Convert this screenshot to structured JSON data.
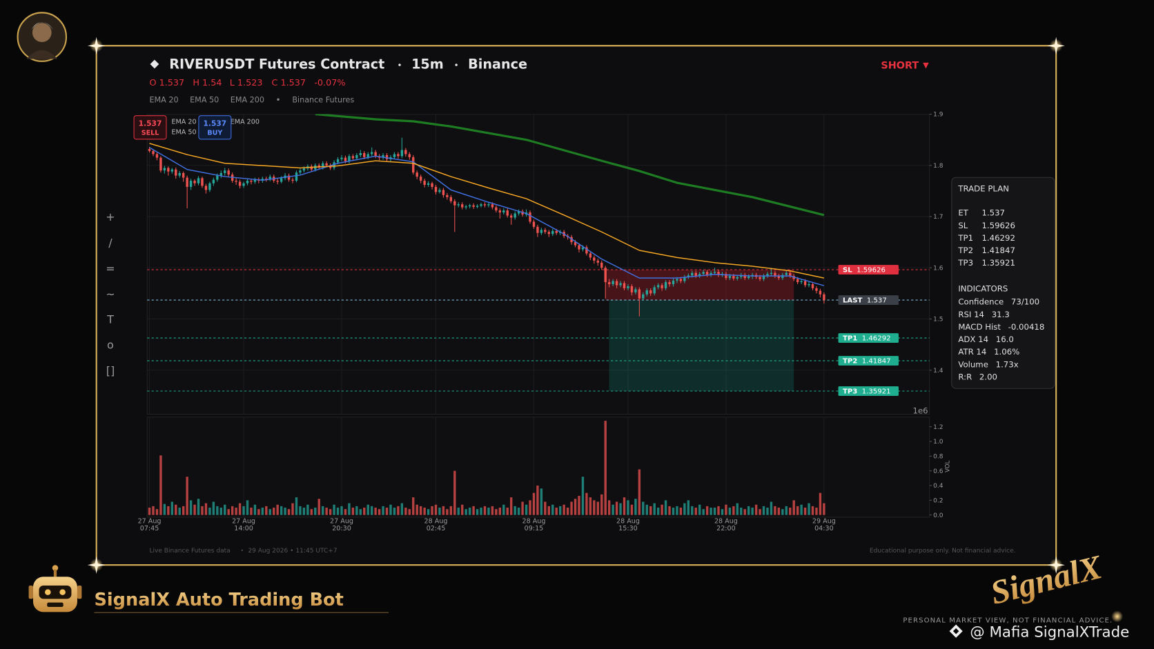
{
  "header": {
    "title": "RIVERUSDT Futures Contract",
    "interval": "15m",
    "exchange": "Binance",
    "side": "SHORT",
    "ohlc": [
      "O 1.537",
      "H 1.54",
      "L 1.523",
      "C 1.537",
      "-0.07%"
    ],
    "indicators": [
      "EMA 20",
      "EMA 50",
      "EMA 200",
      "Binance Futures"
    ]
  },
  "toolbar": [
    "+",
    "/",
    "=",
    "~",
    "T",
    "o",
    "[]"
  ],
  "orders": [
    {
      "price": "1.537",
      "side": "SELL"
    },
    {
      "price": "1.537",
      "side": "BUY"
    }
  ],
  "overlay_legend": [
    "EMA 20",
    "EMA 50",
    "EMA 200"
  ],
  "chart_data": {
    "type": "candlestick",
    "up_color": "#26a69a",
    "down_color": "#ef5350",
    "grid": true,
    "xlim": [
      -0.6,
      207
    ],
    "xticks": [
      {
        "value": 0,
        "label": [
          "27 Aug",
          "07:45"
        ]
      },
      {
        "value": 25,
        "label": [
          "27 Aug",
          "14:00"
        ]
      },
      {
        "value": 51,
        "label": [
          "27 Aug",
          "20:30"
        ]
      },
      {
        "value": 76,
        "label": [
          "28 Aug",
          "02:45"
        ]
      },
      {
        "value": 102,
        "label": [
          "28 Aug",
          "09:15"
        ]
      },
      {
        "value": 127,
        "label": [
          "28 Aug",
          "15:30"
        ]
      },
      {
        "value": 153,
        "label": [
          "28 Aug",
          "22:00"
        ]
      },
      {
        "value": 179,
        "label": [
          "29 Aug",
          "04:30"
        ]
      }
    ],
    "ylim": [
      1.314,
      1.9
    ],
    "yticks": [
      1.4,
      1.5,
      1.6,
      1.7,
      1.8,
      1.9
    ],
    "y_offset_label": "1e6",
    "open": [
      1.832,
      1.828,
      1.822,
      1.815,
      1.79,
      1.795,
      1.788,
      1.792,
      1.78,
      1.785,
      1.776,
      1.758,
      1.77,
      1.765,
      1.775,
      1.76,
      1.752,
      1.765,
      1.772,
      1.78,
      1.785,
      1.79,
      1.782,
      1.77,
      1.768,
      1.76,
      1.765,
      1.77,
      1.768,
      1.772,
      1.77,
      1.774,
      1.772,
      1.778,
      1.77,
      1.768,
      1.775,
      1.78,
      1.772,
      1.77,
      1.786,
      1.79,
      1.794,
      1.798,
      1.792,
      1.8,
      1.796,
      1.804,
      1.8,
      1.795,
      1.806,
      1.812,
      1.815,
      1.808,
      1.818,
      1.814,
      1.82,
      1.824,
      1.816,
      1.822,
      1.826,
      1.818,
      1.815,
      1.82,
      1.812,
      1.816,
      1.822,
      1.818,
      1.83,
      1.822,
      1.816,
      1.786,
      1.778,
      1.77,
      1.762,
      1.765,
      1.758,
      1.748,
      1.752,
      1.742,
      1.738,
      1.73,
      1.722,
      1.724,
      1.718,
      1.72,
      1.722,
      1.719,
      1.721,
      1.724,
      1.722,
      1.724,
      1.718,
      1.712,
      1.708,
      1.712,
      1.702,
      1.698,
      1.706,
      1.71,
      1.704,
      1.708,
      1.69,
      1.68,
      1.668,
      1.674,
      1.67,
      1.666,
      1.672,
      1.668,
      1.67,
      1.662,
      1.66,
      1.65,
      1.644,
      1.636,
      1.64,
      1.628,
      1.62,
      1.614,
      1.61,
      1.6,
      1.572,
      1.568,
      1.574,
      1.566,
      1.57,
      1.56,
      1.564,
      1.552,
      1.558,
      1.54,
      1.548,
      1.556,
      1.55,
      1.562,
      1.566,
      1.56,
      1.572,
      1.568,
      1.575,
      1.578,
      1.574,
      1.582,
      1.585,
      1.59,
      1.584,
      1.588,
      1.592,
      1.586,
      1.59,
      1.592,
      1.586,
      1.588,
      1.58,
      1.584,
      1.579,
      1.582,
      1.586,
      1.58,
      1.583,
      1.586,
      1.582,
      1.578,
      1.584,
      1.588,
      1.59,
      1.584,
      1.58,
      1.586,
      1.59,
      1.584,
      1.578,
      1.572,
      1.574,
      1.566,
      1.568,
      1.56,
      1.555,
      1.548
    ],
    "high": [
      1.836,
      1.831,
      1.825,
      1.818,
      1.799,
      1.798,
      1.795,
      1.796,
      1.789,
      1.788,
      1.78,
      1.774,
      1.773,
      1.779,
      1.778,
      1.764,
      1.768,
      1.776,
      1.784,
      1.79,
      1.795,
      1.794,
      1.786,
      1.775,
      1.772,
      1.768,
      1.774,
      1.774,
      1.776,
      1.776,
      1.778,
      1.778,
      1.782,
      1.782,
      1.774,
      1.779,
      1.785,
      1.784,
      1.776,
      1.79,
      1.794,
      1.798,
      1.802,
      1.802,
      1.804,
      1.804,
      1.808,
      1.808,
      1.804,
      1.81,
      1.816,
      1.82,
      1.819,
      1.822,
      1.822,
      1.824,
      1.83,
      1.828,
      1.826,
      1.835,
      1.83,
      1.822,
      1.824,
      1.824,
      1.82,
      1.826,
      1.826,
      1.854,
      1.834,
      1.826,
      1.82,
      1.79,
      1.782,
      1.774,
      1.769,
      1.768,
      1.762,
      1.756,
      1.756,
      1.746,
      1.742,
      1.734,
      1.728,
      1.728,
      1.723,
      1.725,
      1.726,
      1.724,
      1.727,
      1.728,
      1.728,
      1.728,
      1.722,
      1.716,
      1.716,
      1.716,
      1.706,
      1.71,
      1.714,
      1.714,
      1.714,
      1.712,
      1.694,
      1.684,
      1.678,
      1.678,
      1.674,
      1.676,
      1.676,
      1.674,
      1.674,
      1.666,
      1.664,
      1.654,
      1.648,
      1.644,
      1.644,
      1.632,
      1.624,
      1.618,
      1.614,
      1.604,
      1.578,
      1.578,
      1.578,
      1.574,
      1.574,
      1.568,
      1.568,
      1.562,
      1.562,
      1.552,
      1.56,
      1.56,
      1.566,
      1.57,
      1.57,
      1.576,
      1.576,
      1.58,
      1.582,
      1.582,
      1.586,
      1.589,
      1.594,
      1.594,
      1.592,
      1.596,
      1.596,
      1.594,
      1.6,
      1.596,
      1.592,
      1.592,
      1.588,
      1.588,
      1.586,
      1.59,
      1.59,
      1.587,
      1.59,
      1.59,
      1.586,
      1.588,
      1.592,
      1.598,
      1.594,
      1.588,
      1.59,
      1.594,
      1.596,
      1.588,
      1.582,
      1.578,
      1.578,
      1.572,
      1.572,
      1.564,
      1.559,
      1.552
    ],
    "low": [
      1.825,
      1.818,
      1.81,
      1.786,
      1.784,
      1.78,
      1.784,
      1.774,
      1.776,
      1.768,
      1.716,
      1.752,
      1.76,
      1.761,
      1.756,
      1.745,
      1.748,
      1.76,
      1.768,
      1.775,
      1.78,
      1.778,
      1.766,
      1.762,
      1.755,
      1.756,
      1.761,
      1.763,
      1.764,
      1.765,
      1.766,
      1.768,
      1.769,
      1.766,
      1.763,
      1.765,
      1.771,
      1.768,
      1.765,
      1.767,
      1.782,
      1.786,
      1.79,
      1.788,
      1.788,
      1.792,
      1.792,
      1.796,
      1.791,
      1.791,
      1.802,
      1.808,
      1.804,
      1.804,
      1.81,
      1.81,
      1.816,
      1.812,
      1.812,
      1.818,
      1.814,
      1.81,
      1.811,
      1.808,
      1.808,
      1.812,
      1.813,
      1.814,
      1.817,
      1.811,
      1.782,
      1.773,
      1.765,
      1.757,
      1.758,
      1.753,
      1.743,
      1.745,
      1.737,
      1.733,
      1.726,
      1.67,
      1.718,
      1.714,
      1.714,
      1.716,
      1.715,
      1.716,
      1.718,
      1.718,
      1.718,
      1.714,
      1.708,
      1.696,
      1.704,
      1.698,
      1.684,
      1.694,
      1.702,
      1.7,
      1.7,
      1.686,
      1.676,
      1.66,
      1.664,
      1.666,
      1.66,
      1.662,
      1.664,
      1.664,
      1.658,
      1.655,
      1.645,
      1.64,
      1.63,
      1.632,
      1.624,
      1.615,
      1.608,
      1.604,
      1.596,
      1.54,
      1.562,
      1.564,
      1.56,
      1.562,
      1.556,
      1.556,
      1.546,
      1.548,
      1.505,
      1.536,
      1.544,
      1.545,
      1.546,
      1.558,
      1.555,
      1.556,
      1.563,
      1.563,
      1.57,
      1.57,
      1.57,
      1.578,
      1.581,
      1.58,
      1.58,
      1.584,
      1.582,
      1.582,
      1.586,
      1.582,
      1.582,
      1.576,
      1.576,
      1.575,
      1.575,
      1.578,
      1.576,
      1.577,
      1.578,
      1.578,
      1.574,
      1.574,
      1.58,
      1.584,
      1.58,
      1.576,
      1.576,
      1.582,
      1.58,
      1.574,
      1.568,
      1.568,
      1.562,
      1.562,
      1.556,
      1.55,
      1.542,
      1.53
    ],
    "close": [
      1.828,
      1.822,
      1.815,
      1.79,
      1.795,
      1.788,
      1.792,
      1.78,
      1.785,
      1.776,
      1.758,
      1.77,
      1.765,
      1.775,
      1.76,
      1.752,
      1.765,
      1.772,
      1.78,
      1.785,
      1.79,
      1.782,
      1.77,
      1.768,
      1.76,
      1.765,
      1.77,
      1.768,
      1.772,
      1.77,
      1.774,
      1.772,
      1.778,
      1.77,
      1.768,
      1.775,
      1.78,
      1.772,
      1.77,
      1.786,
      1.79,
      1.794,
      1.798,
      1.792,
      1.8,
      1.796,
      1.804,
      1.8,
      1.795,
      1.806,
      1.812,
      1.815,
      1.808,
      1.818,
      1.814,
      1.82,
      1.824,
      1.816,
      1.822,
      1.826,
      1.818,
      1.815,
      1.82,
      1.812,
      1.816,
      1.822,
      1.818,
      1.83,
      1.822,
      1.816,
      1.786,
      1.778,
      1.77,
      1.762,
      1.765,
      1.758,
      1.748,
      1.752,
      1.742,
      1.738,
      1.73,
      1.722,
      1.724,
      1.718,
      1.72,
      1.722,
      1.719,
      1.721,
      1.724,
      1.722,
      1.724,
      1.718,
      1.712,
      1.708,
      1.712,
      1.702,
      1.698,
      1.706,
      1.71,
      1.704,
      1.708,
      1.69,
      1.68,
      1.668,
      1.674,
      1.67,
      1.666,
      1.672,
      1.668,
      1.67,
      1.662,
      1.66,
      1.65,
      1.644,
      1.636,
      1.64,
      1.628,
      1.62,
      1.614,
      1.61,
      1.6,
      1.572,
      1.568,
      1.574,
      1.566,
      1.57,
      1.56,
      1.564,
      1.552,
      1.558,
      1.54,
      1.548,
      1.556,
      1.55,
      1.562,
      1.566,
      1.56,
      1.572,
      1.568,
      1.575,
      1.578,
      1.574,
      1.582,
      1.585,
      1.59,
      1.584,
      1.588,
      1.592,
      1.586,
      1.59,
      1.592,
      1.586,
      1.588,
      1.58,
      1.584,
      1.579,
      1.582,
      1.586,
      1.58,
      1.583,
      1.586,
      1.582,
      1.578,
      1.584,
      1.588,
      1.59,
      1.584,
      1.58,
      1.586,
      1.59,
      1.584,
      1.578,
      1.572,
      1.574,
      1.566,
      1.568,
      1.56,
      1.555,
      1.548,
      1.537
    ],
    "series": [
      {
        "name": "EMA 20",
        "color": "#4070e0",
        "x": [
          0,
          10,
          20,
          30,
          40,
          50,
          60,
          70,
          80,
          90,
          100,
          110,
          120,
          130,
          140,
          150,
          160,
          170,
          179
        ],
        "values": [
          1.835,
          1.792,
          1.778,
          1.771,
          1.781,
          1.804,
          1.818,
          1.807,
          1.752,
          1.728,
          1.706,
          1.666,
          1.617,
          1.58,
          1.58,
          1.587,
          1.584,
          1.584,
          1.565
        ]
      },
      {
        "name": "EMA 50",
        "color": "#f5a623",
        "x": [
          0,
          10,
          20,
          40,
          50,
          60,
          70,
          80,
          90,
          100,
          110,
          120,
          130,
          140,
          150,
          160,
          170,
          179
        ],
        "values": [
          1.843,
          1.821,
          1.804,
          1.795,
          1.799,
          1.809,
          1.804,
          1.778,
          1.756,
          1.735,
          1.703,
          1.67,
          1.634,
          1.62,
          1.61,
          1.603,
          1.594,
          1.58
        ]
      },
      {
        "name": "EMA 200",
        "color": "#1e7d22",
        "x": [
          44,
          60,
          70,
          80,
          100,
          120,
          130,
          140,
          160,
          179
        ],
        "values": [
          1.9,
          1.89,
          1.886,
          1.876,
          1.85,
          1.809,
          1.789,
          1.766,
          1.738,
          1.703
        ]
      }
    ],
    "levels": [
      {
        "name": "SL",
        "value": 1.59626,
        "color": "#e0303f"
      },
      {
        "name": "LAST",
        "value": 1.537,
        "color": "#7fb8d8"
      },
      {
        "name": "TP1",
        "value": 1.46292,
        "color": "#1fae8f"
      },
      {
        "name": "TP2",
        "value": 1.41847,
        "color": "#1fae8f"
      },
      {
        "name": "TP3",
        "value": 1.35921,
        "color": "#1fae8f"
      }
    ],
    "volume": {
      "label": "VOL",
      "ylim": [
        -0.03,
        1.33
      ],
      "yticks": [
        {
          "value": 0,
          "label": "0.0"
        },
        0.2,
        0.4,
        0.6,
        0.8,
        {
          "value": 1,
          "label": "1.0"
        },
        1.2
      ],
      "values": [
        0.1,
        0.12,
        0.08,
        0.81,
        0.15,
        0.12,
        0.18,
        0.14,
        0.1,
        0.12,
        0.52,
        0.2,
        0.14,
        0.22,
        0.12,
        0.16,
        0.1,
        0.18,
        0.12,
        0.1,
        0.14,
        0.08,
        0.12,
        0.1,
        0.16,
        0.12,
        0.2,
        0.1,
        0.14,
        0.08,
        0.1,
        0.12,
        0.08,
        0.1,
        0.14,
        0.12,
        0.1,
        0.08,
        0.16,
        0.24,
        0.12,
        0.1,
        0.14,
        0.08,
        0.1,
        0.22,
        0.12,
        0.1,
        0.08,
        0.14,
        0.1,
        0.12,
        0.08,
        0.16,
        0.1,
        0.12,
        0.08,
        0.1,
        0.14,
        0.12,
        0.1,
        0.08,
        0.12,
        0.1,
        0.14,
        0.1,
        0.12,
        0.16,
        0.1,
        0.08,
        0.24,
        0.14,
        0.12,
        0.1,
        0.08,
        0.12,
        0.14,
        0.1,
        0.12,
        0.08,
        0.12,
        0.6,
        0.1,
        0.14,
        0.08,
        0.1,
        0.12,
        0.08,
        0.1,
        0.12,
        0.1,
        0.12,
        0.08,
        0.1,
        0.14,
        0.1,
        0.24,
        0.12,
        0.1,
        0.18,
        0.14,
        0.2,
        0.3,
        0.4,
        0.36,
        0.18,
        0.12,
        0.14,
        0.1,
        0.12,
        0.14,
        0.1,
        0.18,
        0.22,
        0.26,
        0.52,
        0.3,
        0.24,
        0.2,
        0.18,
        0.28,
        1.28,
        0.2,
        0.14,
        0.18,
        0.16,
        0.24,
        0.2,
        0.14,
        0.22,
        0.62,
        0.18,
        0.14,
        0.12,
        0.16,
        0.1,
        0.14,
        0.2,
        0.12,
        0.1,
        0.12,
        0.1,
        0.16,
        0.2,
        0.12,
        0.1,
        0.14,
        0.08,
        0.12,
        0.1,
        0.1,
        0.12,
        0.08,
        0.14,
        0.1,
        0.12,
        0.16,
        0.1,
        0.08,
        0.12,
        0.1,
        0.14,
        0.08,
        0.12,
        0.1,
        0.18,
        0.12,
        0.1,
        0.08,
        0.12,
        0.1,
        0.2,
        0.12,
        0.14,
        0.1,
        0.16,
        0.12,
        0.1,
        0.3,
        0.16
      ]
    }
  },
  "trade_plan": {
    "title": "TRADE PLAN",
    "rows": [
      [
        "ET",
        "1.537"
      ],
      [
        "SL",
        "1.59626"
      ],
      [
        "TP1",
        "1.46292"
      ],
      [
        "TP2",
        "1.41847"
      ],
      [
        "TP3",
        "1.35921"
      ]
    ],
    "indicators_title": "INDICATORS",
    "indicators": [
      [
        "Confidence",
        "73/100"
      ],
      [
        "RSI 14",
        "31.3"
      ],
      [
        "MACD Hist",
        "-0.00418"
      ],
      [
        "ADX 14",
        "16.0"
      ],
      [
        "ATR 14",
        "1.06%"
      ],
      [
        "Volume",
        "1.73x"
      ],
      [
        "R:R",
        "2.00"
      ]
    ]
  },
  "footer": {
    "source": "Live Binance Futures data",
    "timestamp": "29 Aug 2026 • 11:45 UTC+7",
    "disclaimer": "Educational purpose only. Not financial advice."
  },
  "branding": {
    "bot": "SignalX Auto Trading Bot",
    "logo": "SignalX",
    "tagline": "PERSONAL MARKET VIEW, NOT FINANCIAL ADVICE.",
    "handle": "@ Mafia SignalXTrade"
  }
}
